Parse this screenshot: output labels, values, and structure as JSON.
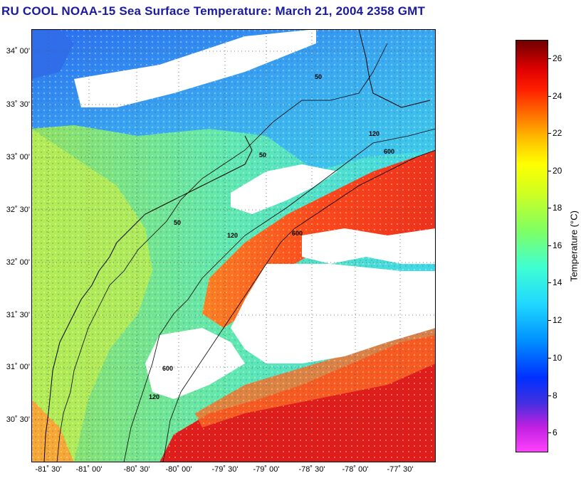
{
  "title": "RU COOL  NOAA-15  Sea Surface Temperature:  March 21, 2004 2358 GMT",
  "lat_labels": [
    "34˚ 00'",
    "33˚ 30'",
    "33˚ 00'",
    "32˚ 30'",
    "32˚ 00'",
    "31˚ 30'",
    "31˚ 00'",
    "30˚ 30'"
  ],
  "lon_labels": [
    "-81˚ 30'",
    "-81˚ 00'",
    "-80˚ 30'",
    "-80˚ 00'",
    "-79˚ 30'",
    "-79˚ 00'",
    "-78˚ 30'",
    "-78˚ 00'",
    "-77˚ 30'"
  ],
  "colorbar": {
    "title": "Temperature (°C)",
    "ticks": [
      "26",
      "24",
      "22",
      "20",
      "18",
      "16",
      "14",
      "12",
      "10",
      "8",
      "6"
    ],
    "range": [
      5,
      27
    ],
    "colors": [
      "#ff40ff",
      "#c020e0",
      "#4030e0",
      "#0030ff",
      "#0090ff",
      "#20d8ff",
      "#40ffd0",
      "#80ff60",
      "#d0ff20",
      "#ffff00",
      "#ffc000",
      "#ff7000",
      "#ff2000",
      "#e00000",
      "#a00000",
      "#700000"
    ]
  },
  "isobaths": [
    {
      "label": "50"
    },
    {
      "label": "120"
    },
    {
      "label": "600"
    }
  ],
  "map_colors": {
    "cold_north": "#3a8cf0",
    "cool_shelf": "#40d8e8",
    "warm_inner": "#a8e858",
    "gulf_stream": "#ff4020",
    "hot_south": "#e81818",
    "cloud": "#ffffff",
    "land": "#3aa0e8"
  }
}
